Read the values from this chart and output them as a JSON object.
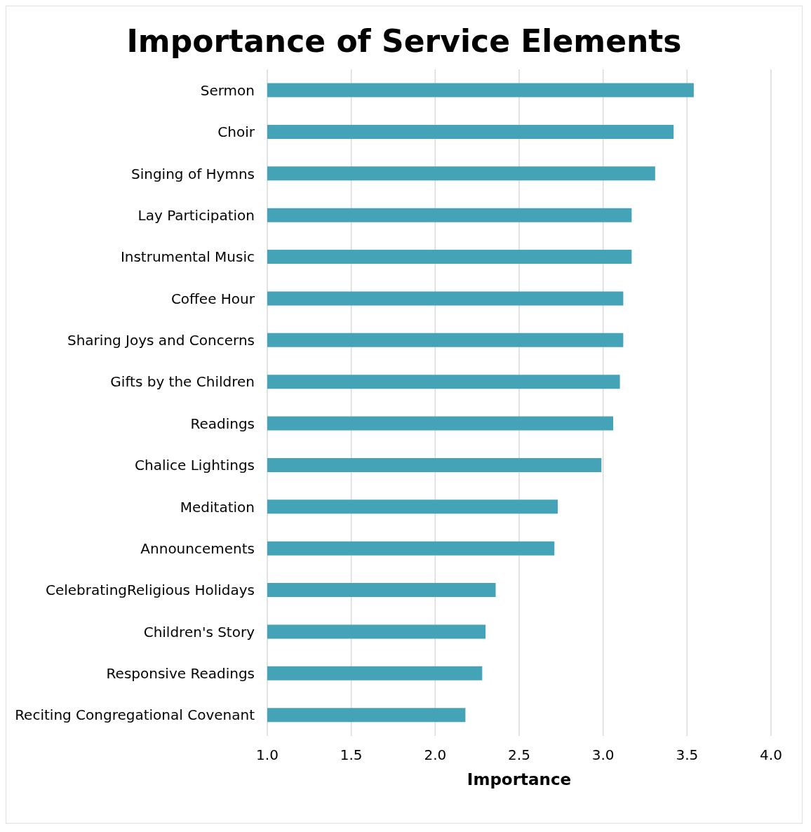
{
  "chart_data": {
    "type": "bar",
    "orientation": "horizontal",
    "title": "Importance of Service Elements",
    "xlabel": "Importance",
    "categories": [
      "Sermon",
      "Choir",
      "Singing of Hymns",
      "Lay Participation",
      "Instrumental Music",
      "Coffee Hour",
      "Sharing Joys and Concerns",
      "Gifts by the Children",
      "Readings",
      "Chalice Lightings",
      "Meditation",
      "Announcements",
      "CelebratingReligious Holidays",
      "Children's Story",
      "Responsive Readings",
      "Reciting Congregational Covenant"
    ],
    "values": [
      3.54,
      3.42,
      3.31,
      3.17,
      3.17,
      3.12,
      3.12,
      3.1,
      3.06,
      2.99,
      2.73,
      2.71,
      2.36,
      2.3,
      2.28,
      2.18
    ],
    "color": "#45a3b8",
    "xlim": [
      1,
      4
    ],
    "xticks": [
      {
        "value": 1,
        "label": "1.0"
      },
      {
        "value": 1.5,
        "label": "1.5"
      },
      {
        "value": 2,
        "label": "2.0"
      },
      {
        "value": 2.5,
        "label": "2.5"
      },
      {
        "value": 3,
        "label": "3.0"
      },
      {
        "value": 3.5,
        "label": "3.5"
      },
      {
        "value": 4,
        "label": "4.0"
      }
    ],
    "grid": "x",
    "legend": false
  }
}
